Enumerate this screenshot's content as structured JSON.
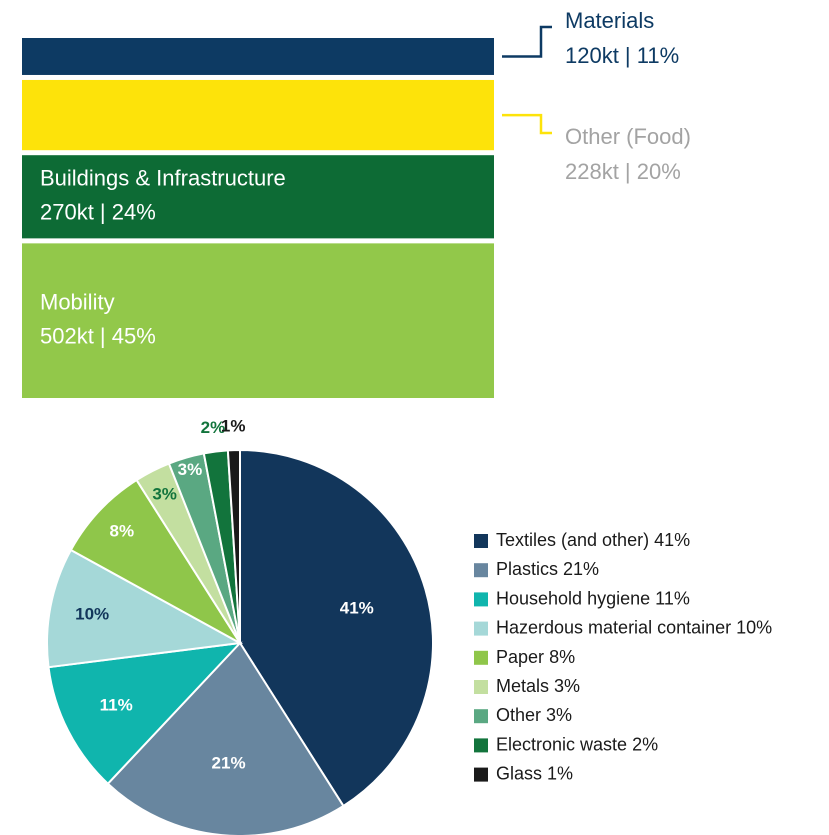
{
  "chart_data": [
    {
      "type": "stacked_bar",
      "series": [
        {
          "name": "Mobility",
          "color": "#92c84a",
          "values": [
            502
          ],
          "value_labels": [
            "502kt | 45%"
          ]
        },
        {
          "name": "Buildings & Infrastructure",
          "color": "#0d6b35",
          "values": [
            270
          ],
          "value_labels": [
            "270kt | 24%"
          ]
        },
        {
          "name": "Other (Food)",
          "color": "#fde30a",
          "values": [
            228
          ],
          "value_labels": [
            "228kt | 20%"
          ]
        },
        {
          "name": "Materials",
          "color": "#0d3a63",
          "values": [
            120
          ],
          "value_labels": [
            "120kt | 11%"
          ]
        }
      ]
    },
    {
      "type": "pie",
      "categories": [
        "Textiles (and other)",
        "Plastics",
        "Household hygiene",
        "Hazerdous material container",
        "Paper",
        "Metals",
        "Other",
        "Electronic waste",
        "Glass"
      ],
      "values": [
        41,
        21,
        11,
        10,
        8,
        3,
        3,
        2,
        1
      ],
      "value_labels": [
        "41%",
        "21%",
        "11%",
        "10%",
        "8%",
        "3%",
        "3%",
        "2%",
        "1%"
      ],
      "colors": [
        "#12365b",
        "#68869f",
        "#10b5ad",
        "#a5d8d8",
        "#8fc64a",
        "#c3dfa0",
        "#5aa882",
        "#12743c",
        "#1a1a1a"
      ],
      "legend": "right"
    }
  ]
}
